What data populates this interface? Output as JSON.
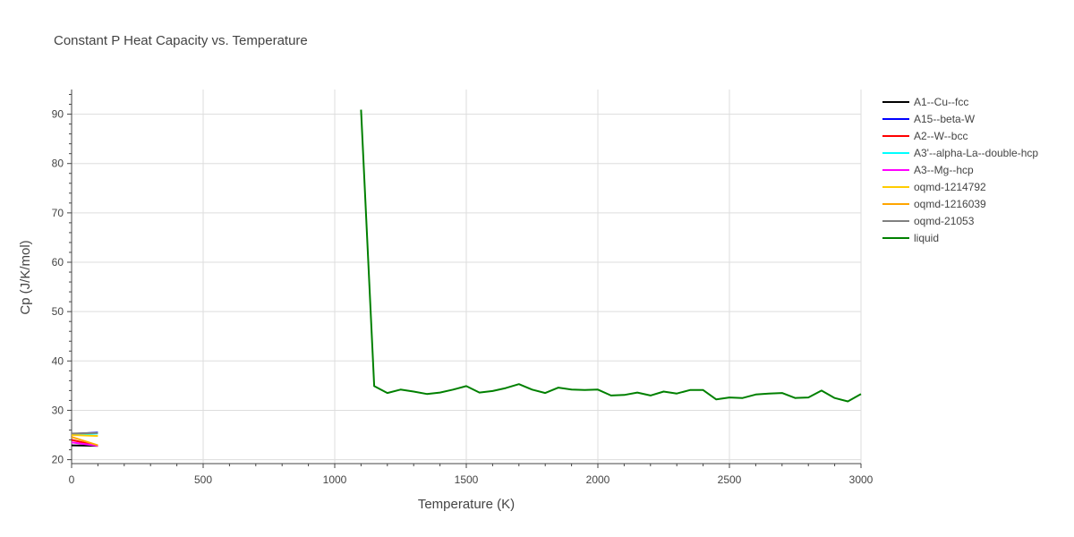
{
  "chart_data": {
    "type": "line",
    "title": "Constant P Heat Capacity vs. Temperature",
    "xlabel": "Temperature (K)",
    "ylabel": "Cp (J/K/mol)",
    "xlim": [
      0,
      3000
    ],
    "ylim": [
      19.2,
      95
    ],
    "xticks": [
      0,
      500,
      1000,
      1500,
      2000,
      2500,
      3000
    ],
    "yticks": [
      20,
      30,
      40,
      50,
      60,
      70,
      80,
      90
    ],
    "grid": true,
    "legend_position": "right",
    "series": [
      {
        "name": "A1--Cu--fcc",
        "color": "#000000",
        "x": [
          0,
          100
        ],
        "y": [
          22.9,
          22.8
        ]
      },
      {
        "name": "A15--beta-W",
        "color": "#0000ff",
        "x": [
          0,
          100
        ],
        "y": [
          25.2,
          25.5
        ]
      },
      {
        "name": "A2--W--bcc",
        "color": "#ff0000",
        "x": [
          0,
          100
        ],
        "y": [
          24.0,
          22.8
        ]
      },
      {
        "name": "A3'--alpha-La--double-hcp",
        "color": "#00ffff",
        "x": [
          0,
          100
        ],
        "y": [
          25.0,
          25.3
        ]
      },
      {
        "name": "A3--Mg--hcp",
        "color": "#ff00ff",
        "x": [
          0,
          100
        ],
        "y": [
          23.5,
          22.8
        ]
      },
      {
        "name": "oqmd-1214792",
        "color": "#ffcc00",
        "x": [
          0,
          100
        ],
        "y": [
          25.0,
          24.8
        ]
      },
      {
        "name": "oqmd-1216039",
        "color": "#ffa500",
        "x": [
          0,
          100
        ],
        "y": [
          24.6,
          22.9
        ]
      },
      {
        "name": "oqmd-21053",
        "color": "#808080",
        "x": [
          0,
          100
        ],
        "y": [
          25.3,
          25.4
        ]
      },
      {
        "name": "liquid",
        "color": "#008000",
        "x": [
          1100,
          1150,
          1200,
          1250,
          1300,
          1350,
          1400,
          1450,
          1500,
          1550,
          1600,
          1650,
          1700,
          1750,
          1800,
          1850,
          1900,
          1950,
          2000,
          2050,
          2100,
          2150,
          2200,
          2250,
          2300,
          2350,
          2400,
          2450,
          2500,
          2550,
          2600,
          2650,
          2700,
          2750,
          2800,
          2850,
          2900,
          2950,
          3000
        ],
        "y": [
          90.9,
          34.9,
          33.5,
          34.2,
          33.8,
          33.3,
          33.6,
          34.2,
          34.9,
          33.6,
          33.9,
          34.5,
          35.3,
          34.2,
          33.5,
          34.6,
          34.2,
          34.1,
          34.2,
          33.0,
          33.1,
          33.6,
          33.0,
          33.8,
          33.4,
          34.1,
          34.1,
          32.2,
          32.6,
          32.5,
          33.2,
          33.4,
          33.5,
          32.5,
          32.6,
          34.0,
          32.5,
          31.8,
          33.3
        ]
      }
    ]
  }
}
